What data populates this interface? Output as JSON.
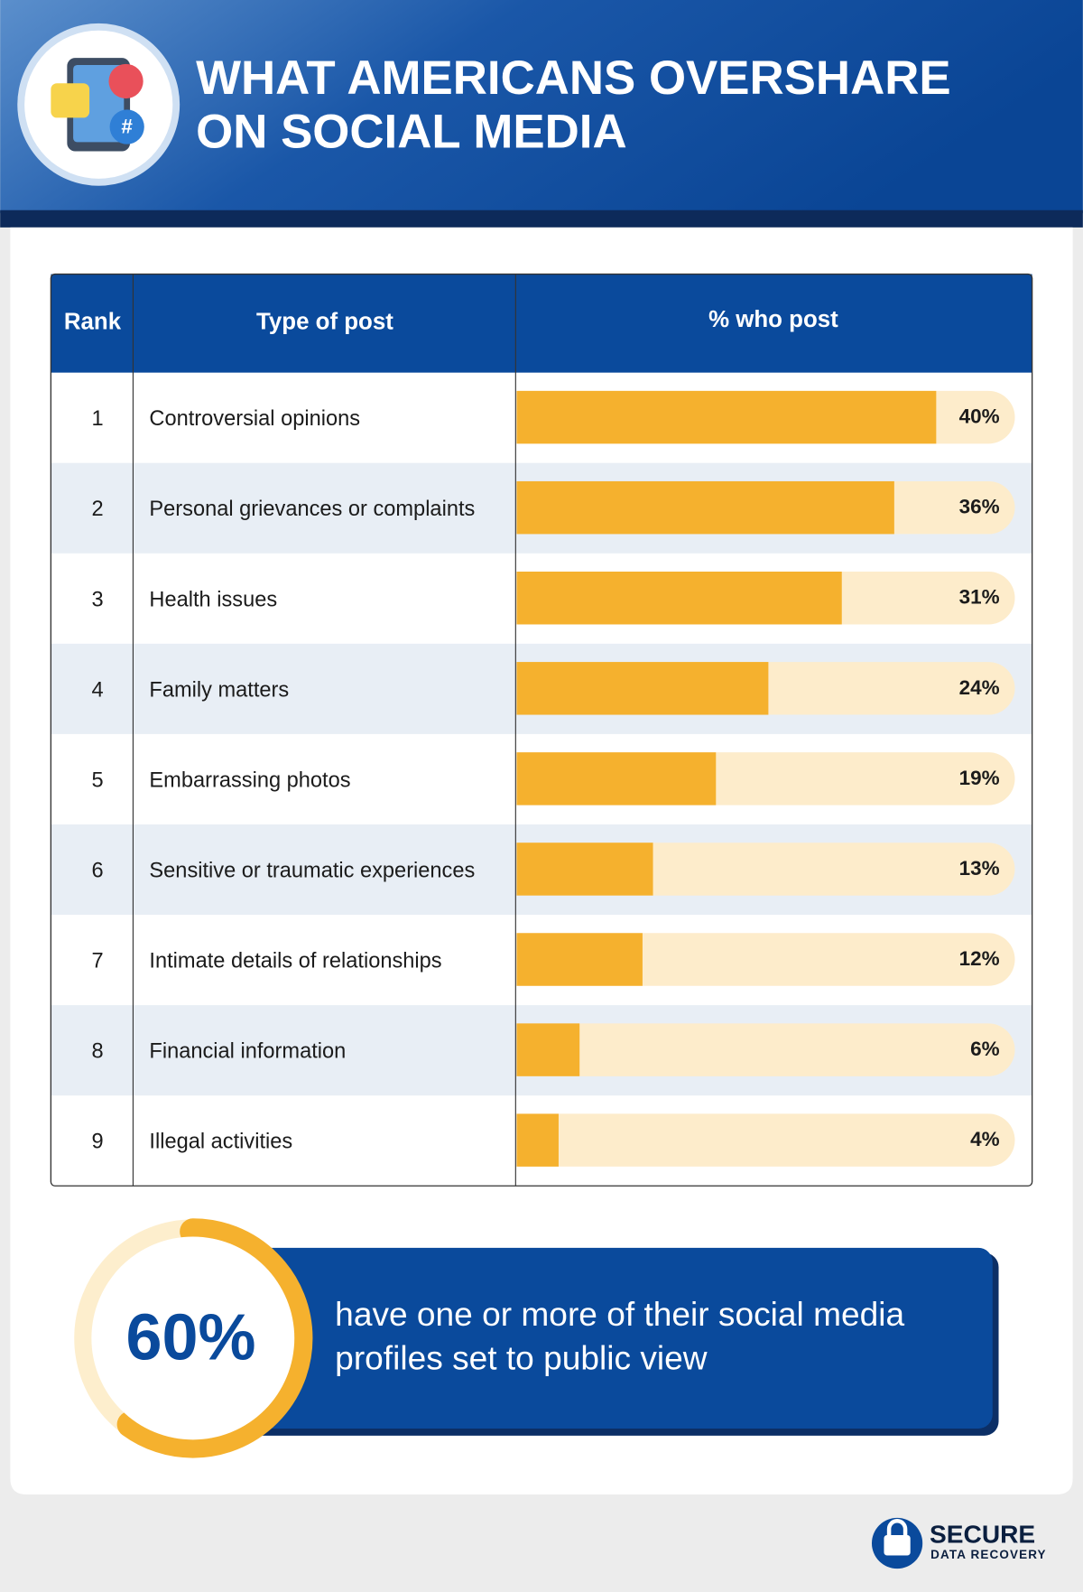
{
  "chart_data": {
    "type": "bar",
    "orientation": "horizontal",
    "title": [
      "WHAT AMERICANS OVERSHARE",
      "ON SOCIAL MEDIA"
    ],
    "columns": [
      "Rank",
      "Type of post",
      "% who post"
    ],
    "ranks": [
      1,
      2,
      3,
      4,
      5,
      6,
      7,
      8,
      9
    ],
    "categories": [
      "Controversial opinions",
      "Personal grievances or complaints",
      "Health issues",
      "Family matters",
      "Embarrassing photos",
      "Sensitive or traumatic experiences",
      "Intimate details of relationships",
      "Financial information",
      "Illegal activities"
    ],
    "values": [
      40,
      36,
      31,
      24,
      19,
      13,
      12,
      6,
      4
    ],
    "value_labels": [
      "40%",
      "36%",
      "31%",
      "24%",
      "19%",
      "13%",
      "12%",
      "6%",
      "4%"
    ],
    "xlim": [
      0,
      47.5
    ],
    "color": "#f5b12e",
    "track_color": "#fdeccb",
    "callout": {
      "value": 60,
      "value_label": "60%",
      "range": [
        0,
        100
      ],
      "color": "#f5b12e",
      "track_color": "#fdeecd",
      "text": [
        "have one or more of their social media",
        "profiles set to public view"
      ]
    },
    "brand": [
      "SECURE",
      "DATA RECOVERY"
    ]
  }
}
